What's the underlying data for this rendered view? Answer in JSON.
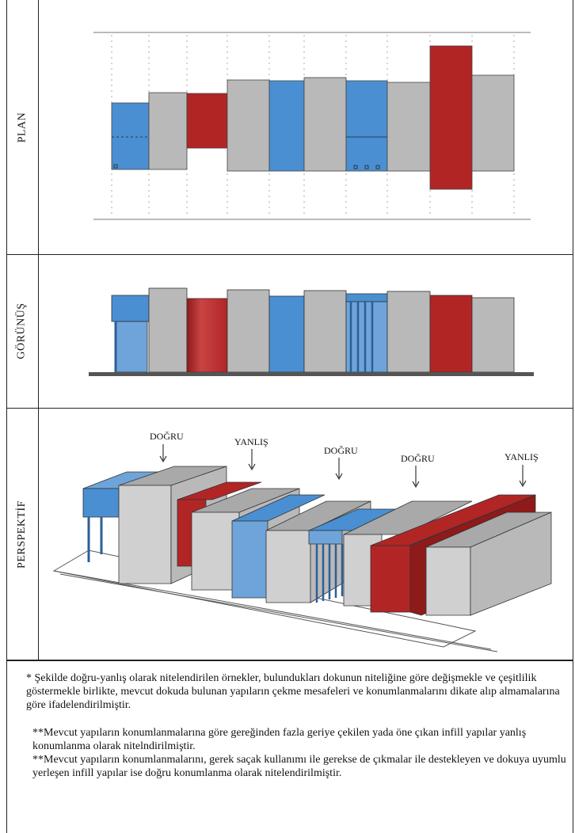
{
  "rows": {
    "plan": "PLAN",
    "elevation": "GÖRÜNÜŞ",
    "perspective": "PERSPEKTİF"
  },
  "annotations": [
    {
      "label": "DOĞRU"
    },
    {
      "label": "YANLIŞ"
    },
    {
      "label": "DOĞRU"
    },
    {
      "label": "DOĞRU"
    },
    {
      "label": "YANLIŞ"
    }
  ],
  "colors": {
    "blue": "#4a8fd2",
    "blue_light": "#6ea4d9",
    "gray": "#b9b9b9",
    "gray_light": "#d4d4d4",
    "red": "#b22525",
    "red_dark": "#8e1a1a",
    "ground": "#555555"
  },
  "notes": {
    "note1": "* Şekilde doğru-yanlış olarak nitelendirilen örnekler, bulundukları dokunun niteliğine göre değişmekle ve çeşitlilik göstermekle birlikte, mevcut dokuda bulunan yapıların çekme mesafeleri ve konumlanmalarını dikate alıp almamalarına göre ifadelendirilmiştir.",
    "note2": "**Mevcut yapıların konumlanmalarına göre gereğinden fazla geriye çekilen yada öne çıkan infill yapılar yanlış konumlanma olarak nitelndirilmiştir.",
    "note3": "**Mevcut yapıların konumlanmalarını, gerek saçak kullanımı ile gerekse de çıkmalar ile destekleyen ve dokuya uyumlu yerleşen infill yapılar ise doğru konumlanma olarak nitelendirilmiştir."
  }
}
